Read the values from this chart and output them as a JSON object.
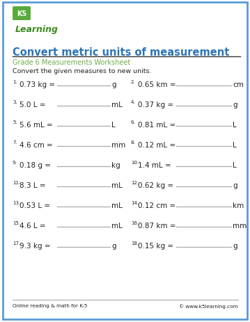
{
  "title": "Convert metric units of measurement",
  "subtitle": "Grade 6 Measurements Worksheet",
  "instruction": "Convert the given measures to new units.",
  "problems": [
    {
      "num": "1.",
      "left": "0.73 kg =",
      "unit": "g"
    },
    {
      "num": "2.",
      "left": "0.65 km =",
      "unit": "cm"
    },
    {
      "num": "3.",
      "left": "5.0 L =",
      "unit": "mL"
    },
    {
      "num": "4.",
      "left": "0.37 kg =",
      "unit": "g"
    },
    {
      "num": "5.",
      "left": "5.6 mL =",
      "unit": "L"
    },
    {
      "num": "6.",
      "left": "0.81 mL =",
      "unit": "L"
    },
    {
      "num": "7.",
      "left": "4.6 cm =",
      "unit": "mm"
    },
    {
      "num": "8.",
      "left": "0.12 mL =",
      "unit": "L"
    },
    {
      "num": "9.",
      "left": "0.18 g =",
      "unit": "kg"
    },
    {
      "num": "10.",
      "left": "1.4 mL =",
      "unit": "L"
    },
    {
      "num": "11.",
      "left": "8.3 L =",
      "unit": "mL"
    },
    {
      "num": "12.",
      "left": "0.62 kg =",
      "unit": "g"
    },
    {
      "num": "13.",
      "left": "0.53 L =",
      "unit": "mL"
    },
    {
      "num": "14.",
      "left": "0.12 cm =",
      "unit": "km"
    },
    {
      "num": "15.",
      "left": "4.6 L =",
      "unit": "mL"
    },
    {
      "num": "16.",
      "left": "0.87 km =",
      "unit": "mm"
    },
    {
      "num": "17.",
      "left": "9.3 kg =",
      "unit": "g"
    },
    {
      "num": "18.",
      "left": "0.15 kg =",
      "unit": "g"
    }
  ],
  "footer_left": "Online reading & math for K-5",
  "footer_right": "© www.k5learning.com",
  "border_color": "#5b9bd5",
  "title_color": "#2e75b6",
  "subtitle_color": "#70ad47",
  "text_color": "#222222",
  "line_color": "#aaaaaa",
  "background_color": "#ffffff"
}
